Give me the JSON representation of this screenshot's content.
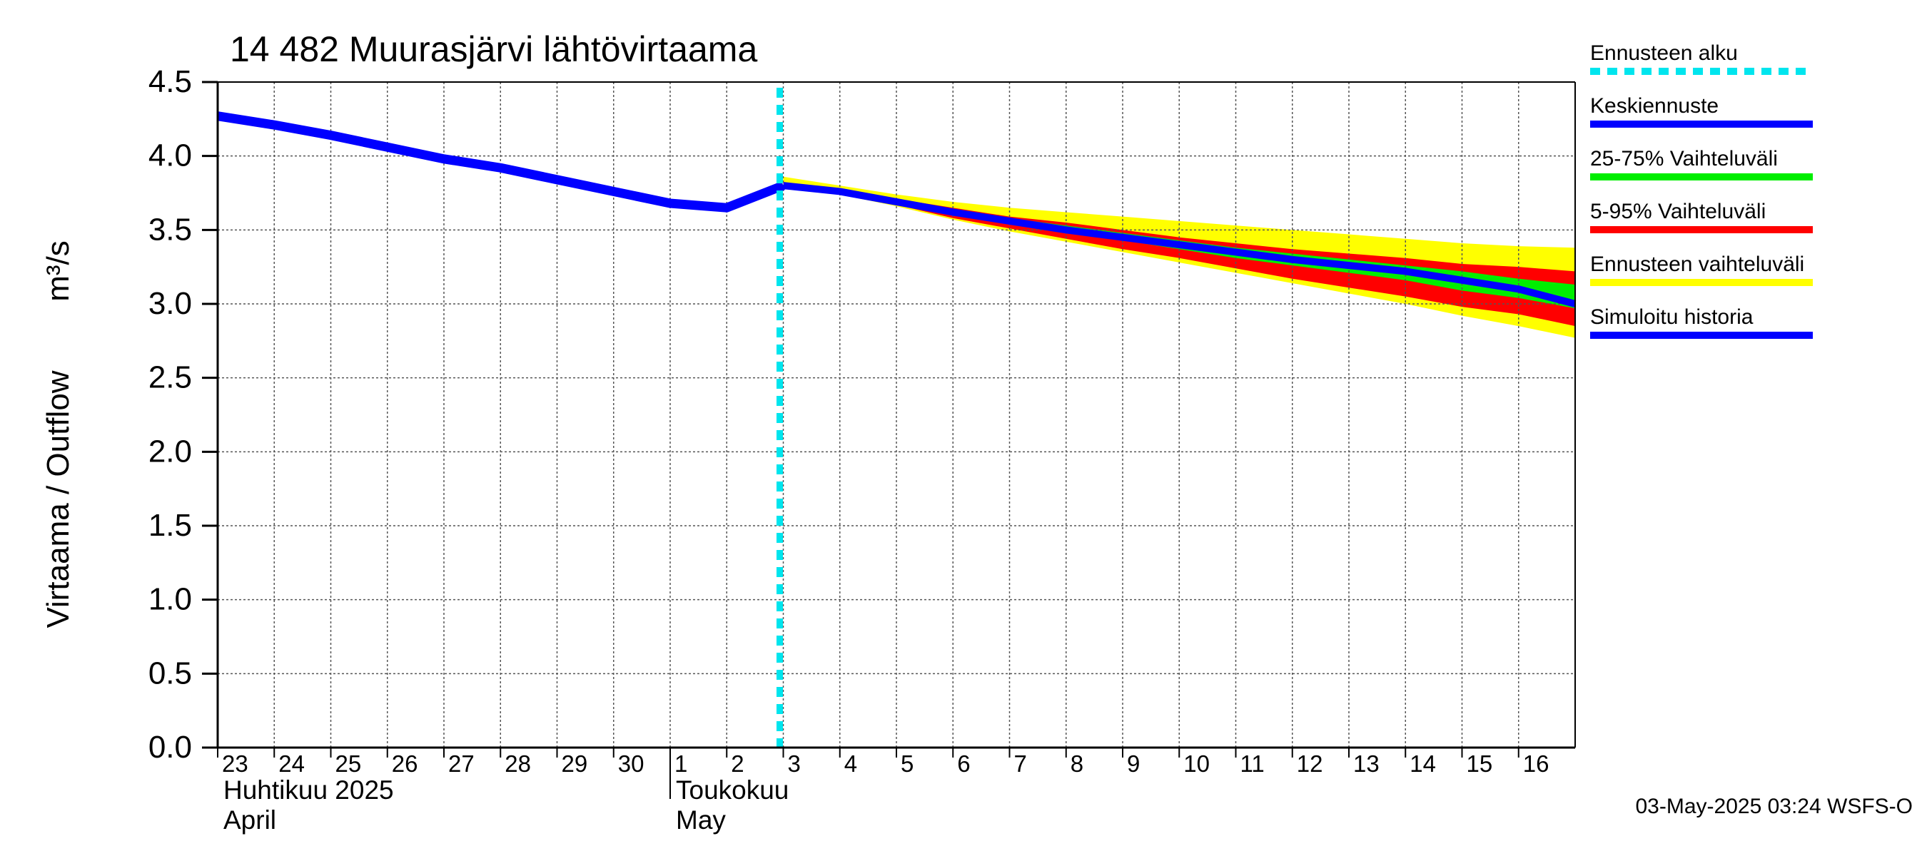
{
  "chart_data": {
    "type": "line",
    "title": "14 482 Muurasjärvi lähtövirtaama",
    "ylabel_main": "Virtaama / Outflow",
    "ylabel_unit": "m³/s",
    "ylim": [
      0,
      4.5
    ],
    "yticks": [
      "0.0",
      "0.5",
      "1.0",
      "1.5",
      "2.0",
      "2.5",
      "3.0",
      "3.5",
      "4.0",
      "4.5"
    ],
    "x_day_range": [
      0,
      24
    ],
    "x_ticks": [
      {
        "day": 0,
        "label": "23"
      },
      {
        "day": 1,
        "label": "24"
      },
      {
        "day": 2,
        "label": "25"
      },
      {
        "day": 3,
        "label": "26"
      },
      {
        "day": 4,
        "label": "27"
      },
      {
        "day": 5,
        "label": "28"
      },
      {
        "day": 6,
        "label": "29"
      },
      {
        "day": 7,
        "label": "30"
      },
      {
        "day": 8,
        "label": "1"
      },
      {
        "day": 9,
        "label": "2"
      },
      {
        "day": 10,
        "label": "3"
      },
      {
        "day": 11,
        "label": "4"
      },
      {
        "day": 12,
        "label": "5"
      },
      {
        "day": 13,
        "label": "6"
      },
      {
        "day": 14,
        "label": "7"
      },
      {
        "day": 15,
        "label": "8"
      },
      {
        "day": 16,
        "label": "9"
      },
      {
        "day": 17,
        "label": "10"
      },
      {
        "day": 18,
        "label": "11"
      },
      {
        "day": 19,
        "label": "12"
      },
      {
        "day": 20,
        "label": "13"
      },
      {
        "day": 21,
        "label": "14"
      },
      {
        "day": 22,
        "label": "15"
      },
      {
        "day": 23,
        "label": "16"
      }
    ],
    "months": [
      {
        "day": 0,
        "fi": "Huhtikuu  2025",
        "en": "April"
      },
      {
        "day": 8,
        "fi": "Toukokuu",
        "en": "May"
      }
    ],
    "forecast_start_day": 10,
    "history": {
      "name": "Simuloitu historia",
      "x": [
        0,
        1,
        2,
        3,
        4,
        5,
        6,
        7,
        8,
        9,
        10
      ],
      "y": [
        4.27,
        4.21,
        4.14,
        4.06,
        3.98,
        3.92,
        3.84,
        3.76,
        3.68,
        3.65,
        3.8
      ]
    },
    "median": {
      "name": "Keskiennuste",
      "x": [
        10,
        11,
        12,
        13,
        14,
        15,
        16,
        17,
        18,
        19,
        20,
        21,
        22,
        23,
        24
      ],
      "y": [
        3.8,
        3.76,
        3.69,
        3.62,
        3.56,
        3.5,
        3.45,
        3.4,
        3.35,
        3.3,
        3.26,
        3.22,
        3.16,
        3.1,
        3.0
      ]
    },
    "band_5_95": {
      "name": "5-95% Vaihteluväli",
      "x": [
        10,
        11,
        12,
        13,
        14,
        15,
        16,
        17,
        18,
        19,
        20,
        21,
        22,
        23,
        24
      ],
      "low": [
        3.79,
        3.75,
        3.67,
        3.58,
        3.51,
        3.44,
        3.37,
        3.31,
        3.24,
        3.17,
        3.11,
        3.05,
        2.98,
        2.93,
        2.85
      ],
      "high": [
        3.82,
        3.77,
        3.71,
        3.65,
        3.59,
        3.55,
        3.5,
        3.45,
        3.41,
        3.37,
        3.34,
        3.31,
        3.27,
        3.25,
        3.22
      ]
    },
    "band_25_75": {
      "name": "25-75% Vaihteluväli",
      "x": [
        10,
        11,
        12,
        13,
        14,
        15,
        16,
        17,
        18,
        19,
        20,
        21,
        22,
        23,
        24
      ],
      "low": [
        3.8,
        3.76,
        3.68,
        3.61,
        3.54,
        3.48,
        3.43,
        3.37,
        3.31,
        3.26,
        3.21,
        3.16,
        3.09,
        3.04,
        2.97
      ],
      "high": [
        3.81,
        3.77,
        3.7,
        3.64,
        3.58,
        3.53,
        3.48,
        3.43,
        3.38,
        3.34,
        3.3,
        3.26,
        3.22,
        3.17,
        3.13
      ]
    },
    "band_forecast": {
      "name": "Ennusteen vaihteluväli",
      "x": [
        10,
        11,
        12,
        13,
        14,
        15,
        16,
        17,
        18,
        19,
        20,
        21,
        22,
        23,
        24
      ],
      "low": [
        3.78,
        3.74,
        3.66,
        3.57,
        3.49,
        3.42,
        3.35,
        3.28,
        3.21,
        3.14,
        3.07,
        3.0,
        2.92,
        2.85,
        2.77
      ],
      "high": [
        3.86,
        3.8,
        3.74,
        3.69,
        3.65,
        3.62,
        3.59,
        3.56,
        3.53,
        3.5,
        3.47,
        3.44,
        3.41,
        3.39,
        3.38
      ]
    },
    "legend": [
      {
        "label": "Ennusteen alku",
        "color": "#00e5ee",
        "style": "dashed"
      },
      {
        "label": "Keskiennuste",
        "color": "#0000ff",
        "style": "solid"
      },
      {
        "label": "25-75% Vaihteluväli",
        "color": "#00ee00",
        "style": "solid"
      },
      {
        "label": "5-95% Vaihteluväli",
        "color": "#ff0000",
        "style": "solid"
      },
      {
        "label": "Ennusteen vaihteluväli",
        "color": "#ffff00",
        "style": "solid"
      },
      {
        "label": "Simuloitu historia",
        "color": "#0000ff",
        "style": "solid"
      }
    ],
    "colors": {
      "history": "#0000ff",
      "median": "#0000ff",
      "band_25_75": "#00ee00",
      "band_5_95": "#ff0000",
      "band_forecast": "#ffff00",
      "forecast_start": "#00e5ee",
      "grid": "#555555"
    },
    "footer": "03-May-2025 03:24 WSFS-O"
  }
}
